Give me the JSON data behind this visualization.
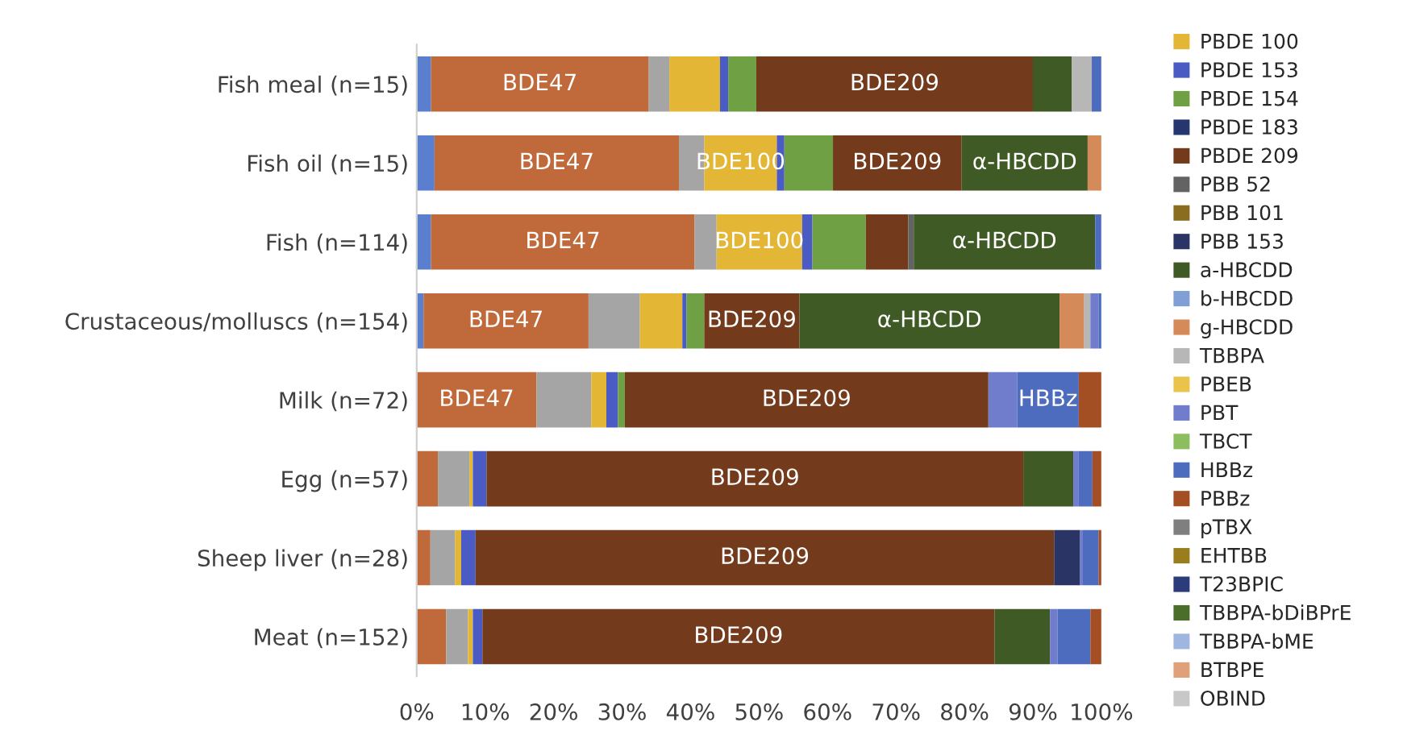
{
  "chart_data": {
    "type": "bar",
    "orientation": "horizontal",
    "stacked": true,
    "categories": [
      "Fish meal (n=15)",
      "Fish oil (n=15)",
      "Fish (n=114)",
      "Crustaceous/molluscs (n=154)",
      "Milk (n=72)",
      "Egg (n=57)",
      "Sheep liver (n=28)",
      "Meat (n=152)"
    ],
    "xlim": [
      0,
      100
    ],
    "xticks": [
      {
        "value": 0,
        "label": "0%"
      },
      {
        "value": 10,
        "label": "10%"
      },
      {
        "value": 20,
        "label": "20%"
      },
      {
        "value": 30,
        "label": "30%"
      },
      {
        "value": 40,
        "label": "40%"
      },
      {
        "value": 50,
        "label": "50%"
      },
      {
        "value": 60,
        "label": "60%"
      },
      {
        "value": 70,
        "label": "70%"
      },
      {
        "value": 80,
        "label": "80%"
      },
      {
        "value": 90,
        "label": "90%"
      },
      {
        "value": 100,
        "label": "100%"
      }
    ],
    "grid": false,
    "legend": "right",
    "series": [
      {
        "color": "#5a7fcf",
        "values": [
          2.1,
          2.6,
          2.1,
          1.0,
          0,
          0,
          0,
          0
        ]
      },
      {
        "color": "#c0693a",
        "values": [
          31.8,
          35.7,
          38.5,
          24.1,
          17.5,
          3.1,
          2.0,
          4.3
        ],
        "value_labels": [
          "BDE47",
          "BDE47",
          "BDE47",
          "BDE47",
          "BDE47",
          null,
          null,
          null
        ]
      },
      {
        "color": "#a5a5a5",
        "values": [
          3.0,
          3.7,
          3.2,
          7.5,
          8.0,
          4.6,
          3.6,
          3.2
        ]
      },
      {
        "name": "PBDE 100",
        "color": "#e3b636",
        "values": [
          7.4,
          10.6,
          12.5,
          6.2,
          2.2,
          0.5,
          0.9,
          0.7
        ],
        "value_labels": [
          null,
          "BDE100",
          "BDE100",
          null,
          null,
          null,
          null,
          null
        ]
      },
      {
        "name": "PBDE 153",
        "color": "#4a5bc4",
        "values": [
          1.2,
          1.1,
          1.5,
          0.6,
          1.7,
          2.0,
          2.1,
          1.4
        ]
      },
      {
        "name": "PBDE 154",
        "color": "#70a044",
        "values": [
          4.1,
          7.1,
          7.8,
          2.6,
          1.0,
          0,
          0,
          0
        ]
      },
      {
        "name": "PBDE 183",
        "color": "#26366e",
        "values": [
          0,
          0,
          0,
          0,
          0,
          0,
          0,
          0
        ]
      },
      {
        "name": "PBDE 209",
        "color": "#733a1c",
        "values": [
          40.4,
          18.8,
          6.2,
          13.9,
          53.1,
          78.4,
          84.5,
          74.8
        ],
        "value_labels": [
          "BDE209",
          "BDE209",
          null,
          "BDE209",
          "BDE209",
          "BDE209",
          "BDE209",
          "BDE209"
        ]
      },
      {
        "name": "PBB 52",
        "color": "#636363",
        "values": [
          0,
          0,
          0.8,
          0,
          0,
          0,
          0,
          0
        ]
      },
      {
        "name": "PBB 101",
        "color": "#8a6d1f",
        "values": [
          0,
          0,
          0,
          0,
          0,
          0,
          0,
          0
        ]
      },
      {
        "name": "PBB 153",
        "color": "#2a3566",
        "values": [
          0,
          0,
          0,
          0,
          0,
          0,
          3.8,
          0
        ]
      },
      {
        "name": "a-HBCDD",
        "color": "#3f5a24",
        "values": [
          5.7,
          18.4,
          26.5,
          38.0,
          0,
          7.3,
          0,
          8.1
        ],
        "value_labels": [
          null,
          "α-HBCDD",
          "α-HBCDD",
          "α-HBCDD",
          null,
          null,
          null,
          null
        ]
      },
      {
        "name": "b-HBCDD",
        "color": "#7f9fd6",
        "values": [
          0,
          0,
          0,
          0,
          0,
          0,
          0,
          0
        ]
      },
      {
        "name": "g-HBCDD",
        "color": "#d58a5a",
        "values": [
          0,
          2.0,
          0,
          3.6,
          0,
          0,
          0,
          0
        ]
      },
      {
        "name": "TBBPA",
        "color": "#b7b7b7",
        "values": [
          2.9,
          0,
          0,
          0.9,
          0,
          0,
          0,
          0
        ]
      },
      {
        "name": "PBEB",
        "color": "#eac34a",
        "values": [
          0,
          0,
          0,
          0,
          0,
          0,
          0,
          0
        ]
      },
      {
        "name": "PBT",
        "color": "#6f7dcc",
        "values": [
          0,
          0,
          0,
          1.2,
          4.2,
          0.8,
          0.4,
          1.1
        ]
      },
      {
        "name": "TBCT",
        "color": "#8cbe5f",
        "values": [
          0,
          0,
          0,
          0,
          0,
          0,
          0,
          0
        ]
      },
      {
        "name": "HBBz",
        "color": "#4d6cbd",
        "values": [
          1.4,
          0,
          0.9,
          0.4,
          9.0,
          2.0,
          2.3,
          4.8
        ],
        "value_labels": [
          null,
          null,
          null,
          null,
          "HBBz",
          null,
          null,
          null
        ]
      },
      {
        "name": "PBBz",
        "color": "#a34e23",
        "values": [
          0,
          0,
          0,
          0,
          3.3,
          1.3,
          0.4,
          1.6
        ]
      },
      {
        "name": "pTBX",
        "color": "#7f7f7f",
        "values": [
          0,
          0,
          0,
          0,
          0,
          0,
          0,
          0
        ]
      },
      {
        "name": "EHTBB",
        "color": "#9a7d1c",
        "values": [
          0,
          0,
          0,
          0,
          0,
          0,
          0,
          0
        ]
      },
      {
        "name": "T23BPIC",
        "color": "#2c3b7a",
        "values": [
          0,
          0,
          0,
          0,
          0,
          0,
          0,
          0
        ]
      },
      {
        "name": "TBBPA-bDiBPrE",
        "color": "#4b6e2a",
        "values": [
          0,
          0,
          0,
          0,
          0,
          0,
          0,
          0
        ]
      },
      {
        "name": "TBBPA-bME",
        "color": "#9fb6e0",
        "values": [
          0,
          0,
          0,
          0,
          0,
          0,
          0,
          0
        ]
      },
      {
        "name": "BTBPE",
        "color": "#e0a07a",
        "values": [
          0,
          0,
          0,
          0,
          0,
          0,
          0,
          0
        ]
      },
      {
        "name": "OBIND",
        "color": "#c8c8c8",
        "values": [
          0,
          0,
          0,
          0,
          0,
          0,
          0,
          0
        ]
      }
    ]
  }
}
